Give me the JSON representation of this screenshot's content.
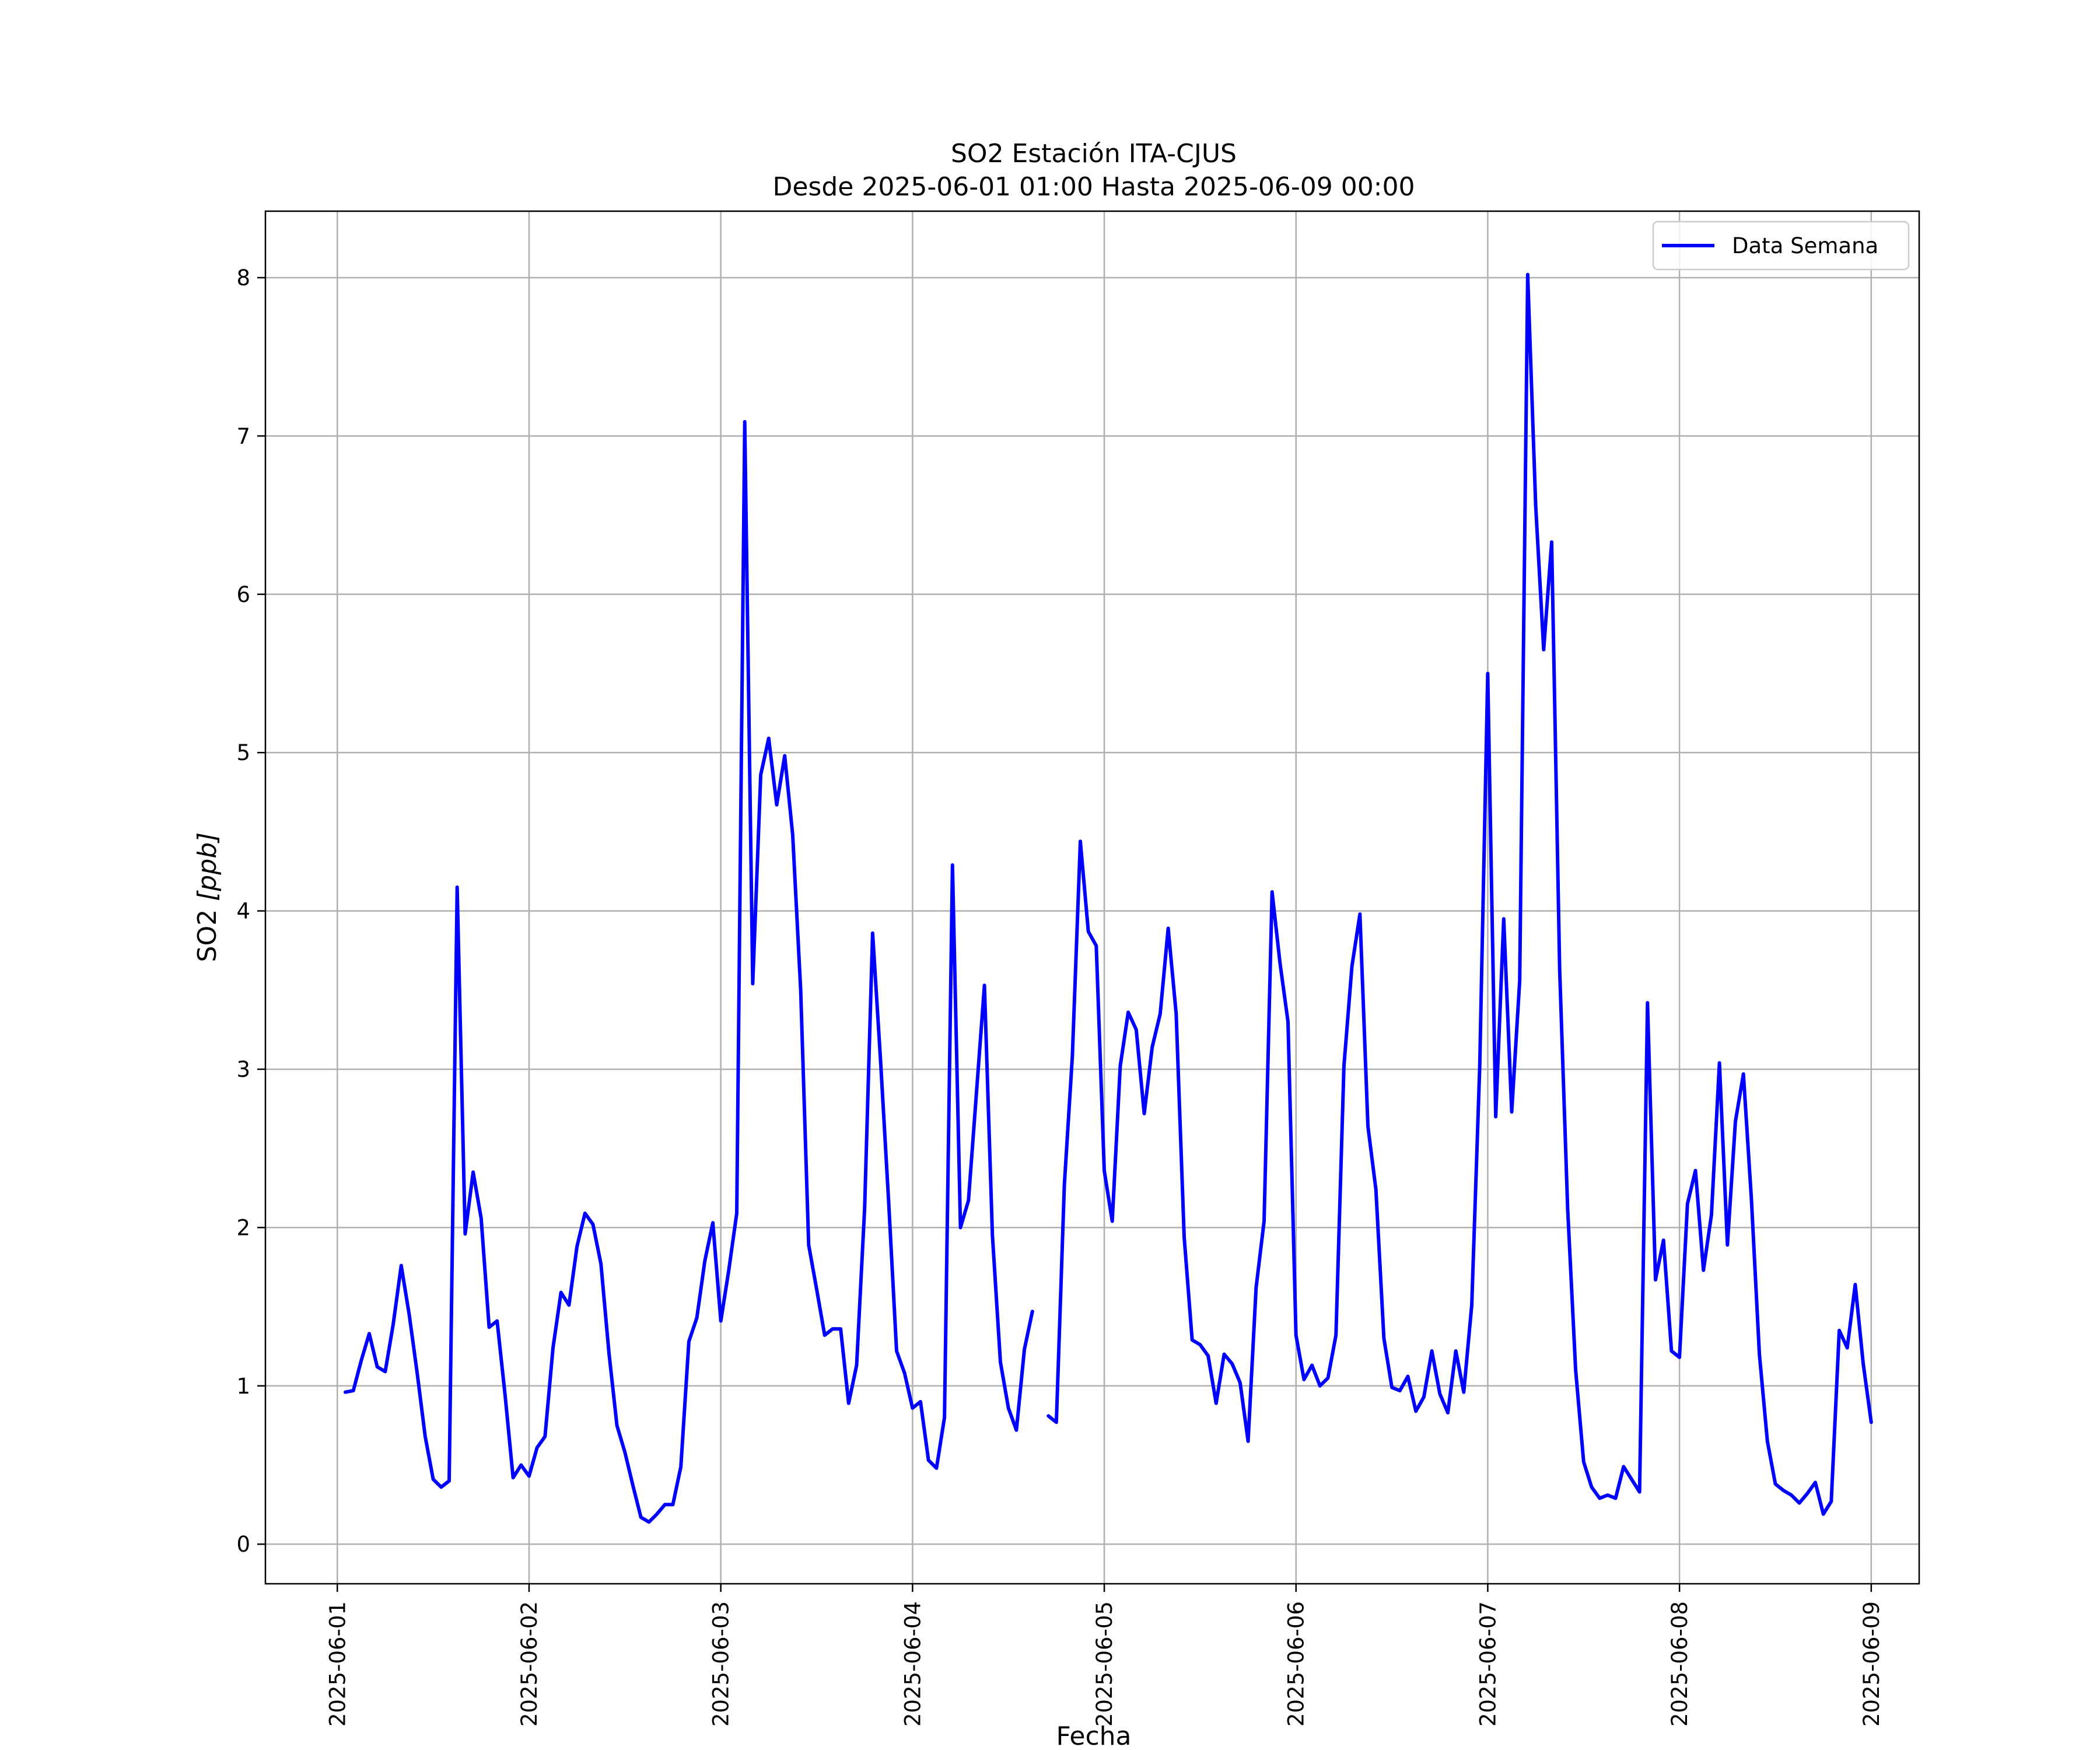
{
  "chart_data": {
    "type": "line",
    "title": "SO2 Estación ITA-CJUS",
    "subtitle": "Desde 2025-06-01 01:00 Hasta 2025-06-09 00:00",
    "xlabel": "Fecha",
    "ylabel_main": "SO2 ",
    "ylabel_unit": "[ppb]",
    "xlim": [
      "2025-05-31 15:00",
      "2025-06-09 06:00"
    ],
    "ylim": [
      -0.25,
      8.42
    ],
    "grid": true,
    "legend_position": "top-right",
    "x_ticks": [
      "2025-06-01",
      "2025-06-02",
      "2025-06-03",
      "2025-06-04",
      "2025-06-05",
      "2025-06-06",
      "2025-06-07",
      "2025-06-08",
      "2025-06-09"
    ],
    "y_ticks": [
      "0",
      "1",
      "2",
      "3",
      "4",
      "5",
      "6",
      "7",
      "8"
    ],
    "series": [
      {
        "name": "Data Semana",
        "color": "#0000ff",
        "start": "2025-06-01 01:00",
        "step_hours": 1,
        "values": [
          0.96,
          0.97,
          1.16,
          1.33,
          1.12,
          1.09,
          1.39,
          1.76,
          1.45,
          1.08,
          0.68,
          0.41,
          0.36,
          0.4,
          4.15,
          1.96,
          2.35,
          2.06,
          1.37,
          1.41,
          0.94,
          0.42,
          0.5,
          0.43,
          0.61,
          0.68,
          1.24,
          1.59,
          1.51,
          1.88,
          2.09,
          2.02,
          1.77,
          1.21,
          0.75,
          0.58,
          0.37,
          0.17,
          0.14,
          0.19,
          0.25,
          0.25,
          0.49,
          1.28,
          1.43,
          1.79,
          2.03,
          1.41,
          1.73,
          2.09,
          7.09,
          3.54,
          4.86,
          5.09,
          4.67,
          4.98,
          4.48,
          3.5,
          1.89,
          1.61,
          1.32,
          1.36,
          1.36,
          0.89,
          1.13,
          2.12,
          3.86,
          3.05,
          2.17,
          1.22,
          1.08,
          0.86,
          0.9,
          0.53,
          0.48,
          0.8,
          4.29,
          2.0,
          2.17,
          2.85,
          3.53,
          1.95,
          1.15,
          0.86,
          0.72,
          1.23,
          1.47,
          null,
          0.81,
          0.77,
          2.27,
          3.08,
          4.44,
          3.87,
          3.78,
          2.36,
          2.04,
          3.02,
          3.36,
          3.25,
          2.72,
          3.14,
          3.35,
          3.89,
          3.35,
          1.94,
          1.29,
          1.26,
          1.19,
          0.89,
          1.2,
          1.14,
          1.02,
          0.65,
          1.62,
          2.04,
          4.12,
          3.67,
          3.3,
          1.32,
          1.04,
          1.13,
          1.0,
          1.05,
          1.32,
          3.02,
          3.65,
          3.98,
          2.64,
          2.24,
          1.3,
          0.99,
          0.97,
          1.06,
          0.84,
          0.93,
          1.22,
          0.95,
          0.83,
          1.22,
          0.96,
          1.51,
          3.02,
          5.5,
          2.7,
          3.95,
          2.73,
          3.56,
          8.02,
          6.56,
          5.65,
          6.33,
          3.63,
          2.12,
          1.1,
          0.52,
          0.36,
          0.29,
          0.31,
          0.29,
          0.49,
          0.41,
          0.33,
          3.42,
          1.67,
          1.92,
          1.22,
          1.18,
          2.15,
          2.36,
          1.73,
          2.08,
          3.04,
          1.89,
          2.67,
          2.97,
          2.18,
          1.2,
          0.65,
          0.38,
          0.34,
          0.31,
          0.26,
          0.32,
          0.39,
          0.19,
          0.27,
          1.35,
          1.24,
          1.64,
          1.14,
          0.77
        ]
      }
    ]
  }
}
